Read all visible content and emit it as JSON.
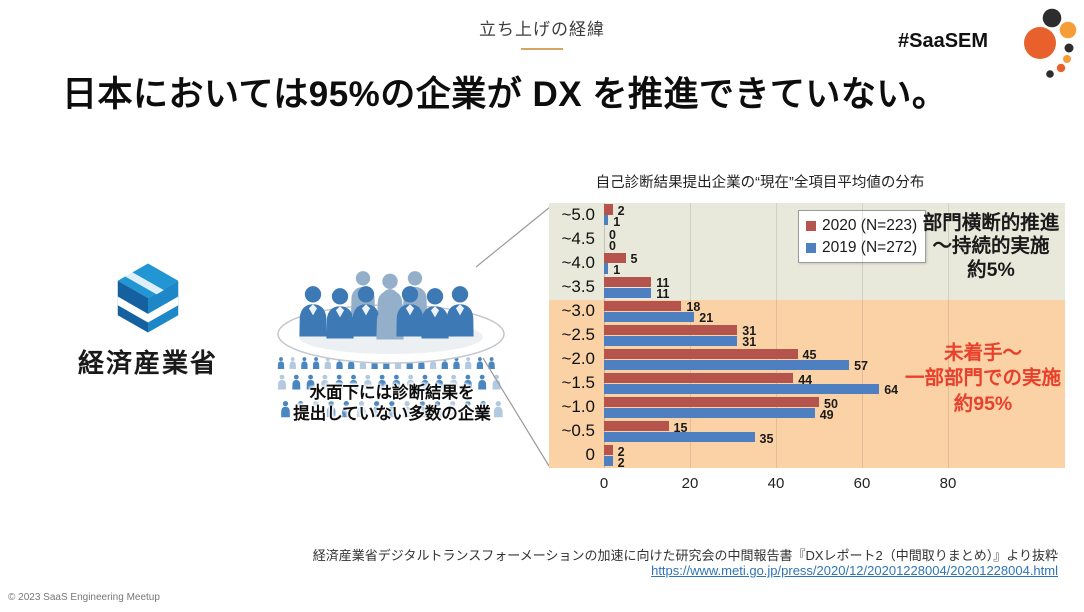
{
  "slide": {
    "section_label": "立ち上げの経緯",
    "section_accent_color": "#d9a45e",
    "hashtag": "#SaaSEM",
    "title": "日本においては95%の企業が DX を推進できていない。",
    "source_line": "経済産業省デジタルトランスフォーメーションの加速に向けた研究会の中間報告書『DXレポート2（中間取りまとめ）』より抜粋",
    "source_url": "https://www.meti.go.jp/press/2020/12/20201228004/20201228004.html",
    "source_url_color": "#2e75b6",
    "copyright": "© 2023 SaaS Engineering Meetup"
  },
  "meti": {
    "name": "経済産業省",
    "logo_colors": {
      "light_blue": "#2196d3",
      "dark_blue": "#15609f",
      "mid_blue": "#1e87c8"
    }
  },
  "illustration": {
    "caption": "水面下には診断結果を\n提出していない多数の企業",
    "figure_colors": {
      "surface_front": "#3d79b5",
      "surface_back": "#93afc9",
      "underwater_dark": "#4a86c0",
      "underwater_light": "#b3c9e0"
    }
  },
  "saasem_logo": {
    "icon": "dot-cluster",
    "colors": {
      "dark": "#2d2d2d",
      "orange": "#e8612c",
      "light_orange": "#f59d38"
    }
  },
  "chart_data": {
    "type": "bar",
    "orientation": "horizontal",
    "title": "自己診断結果提出企業の“現在”全項目平均値の分布",
    "categories": [
      "~5.0",
      "~4.5",
      "~4.0",
      "~3.5",
      "~3.0",
      "~2.5",
      "~2.0",
      "~1.5",
      "~1.0",
      "~0.5",
      "0"
    ],
    "series": [
      {
        "name": "2020 (N=223)",
        "color": "#b4544c",
        "values": [
          2,
          0,
          5,
          11,
          18,
          31,
          45,
          44,
          50,
          15,
          2
        ]
      },
      {
        "name": "2019 (N=272)",
        "color": "#4e7fc0",
        "values": [
          1,
          0,
          1,
          11,
          21,
          31,
          57,
          64,
          49,
          35,
          2
        ]
      }
    ],
    "x_ticks": [
      0,
      20,
      40,
      60,
      80
    ],
    "xlim": [
      0,
      96
    ],
    "grid": "vertical-faint",
    "legend_position": "top-right-inside",
    "zones": [
      {
        "categories": [
          "~5.0",
          "~4.5",
          "~4.0",
          "~3.5"
        ],
        "bg": "#e9e9db"
      },
      {
        "categories": [
          "~3.0",
          "~2.5",
          "~2.0",
          "~1.5",
          "~1.0",
          "~0.5",
          "0"
        ],
        "bg": "#fad2a5"
      }
    ],
    "annotations": [
      {
        "text": "部門横断的推進\n～持続的実施\n約5%",
        "color": "#1a1a1a",
        "zone": "upper"
      },
      {
        "text": "未着手～\n一部部門での実施\n約95%",
        "color": "#e8402c",
        "zone": "lower"
      }
    ]
  }
}
